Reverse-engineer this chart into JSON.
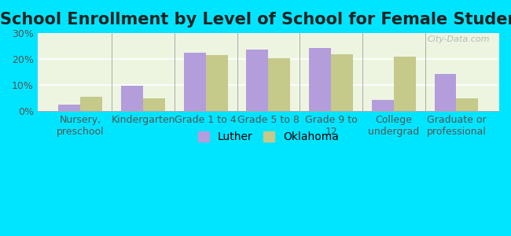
{
  "title": "School Enrollment by Level of School for Female Students",
  "categories": [
    "Nursery,\npreschool",
    "Kindergarten",
    "Grade 1 to 4",
    "Grade 5 to 8",
    "Grade 9 to\n12",
    "College\nundergrad",
    "Graduate or\nprofessional"
  ],
  "luther_values": [
    2.5,
    9.8,
    22.5,
    23.8,
    24.2,
    4.2,
    14.2
  ],
  "oklahoma_values": [
    5.5,
    4.8,
    21.5,
    20.2,
    21.8,
    20.8,
    4.8
  ],
  "luther_color": "#b39ddb",
  "oklahoma_color": "#c5c98a",
  "outer_bg": "#00e5ff",
  "plot_bg": "#edf5e1",
  "ylim": [
    0,
    30
  ],
  "yticks": [
    0,
    10,
    20,
    30
  ],
  "ytick_labels": [
    "0%",
    "10%",
    "20%",
    "30%"
  ],
  "legend_labels": [
    "Luther",
    "Oklahoma"
  ],
  "title_fontsize": 15,
  "tick_fontsize": 9,
  "legend_fontsize": 10,
  "watermark": "City-Data.com"
}
